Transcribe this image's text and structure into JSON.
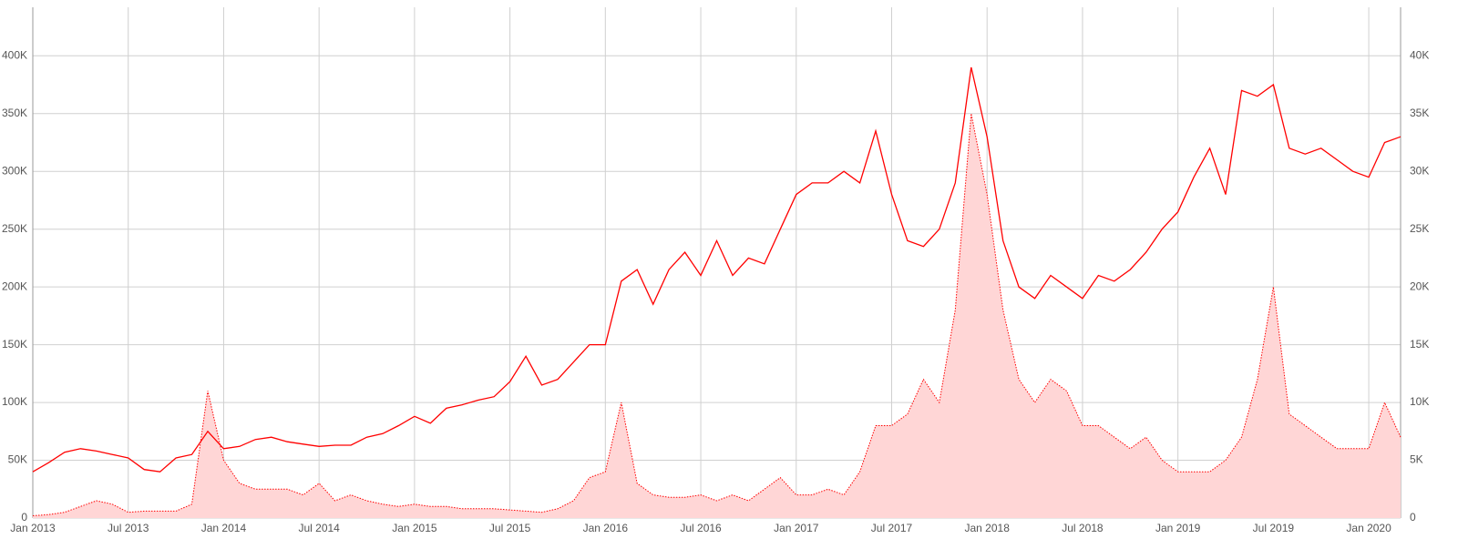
{
  "chart_data": {
    "type": "line",
    "x": [
      "2013-01",
      "2013-02",
      "2013-03",
      "2013-04",
      "2013-05",
      "2013-06",
      "2013-07",
      "2013-08",
      "2013-09",
      "2013-10",
      "2013-11",
      "2013-12",
      "2014-01",
      "2014-02",
      "2014-03",
      "2014-04",
      "2014-05",
      "2014-06",
      "2014-07",
      "2014-08",
      "2014-09",
      "2014-10",
      "2014-11",
      "2014-12",
      "2015-01",
      "2015-02",
      "2015-03",
      "2015-04",
      "2015-05",
      "2015-06",
      "2015-07",
      "2015-08",
      "2015-09",
      "2015-10",
      "2015-11",
      "2015-12",
      "2016-01",
      "2016-02",
      "2016-03",
      "2016-04",
      "2016-05",
      "2016-06",
      "2016-07",
      "2016-08",
      "2016-09",
      "2016-10",
      "2016-11",
      "2016-12",
      "2017-01",
      "2017-02",
      "2017-03",
      "2017-04",
      "2017-05",
      "2017-06",
      "2017-07",
      "2017-08",
      "2017-09",
      "2017-10",
      "2017-11",
      "2017-12",
      "2018-01",
      "2018-02",
      "2018-03",
      "2018-04",
      "2018-05",
      "2018-06",
      "2018-07",
      "2018-08",
      "2018-09",
      "2018-10",
      "2018-11",
      "2018-12",
      "2019-01",
      "2019-02",
      "2019-03",
      "2019-04",
      "2019-05",
      "2019-06",
      "2019-07",
      "2019-08",
      "2019-09",
      "2019-10",
      "2019-11",
      "2019-12",
      "2020-01",
      "2020-02",
      "2020-03"
    ],
    "series": [
      {
        "type": "line",
        "color": "#ff0000",
        "values": [
          40000,
          48000,
          57000,
          60000,
          58000,
          55000,
          52000,
          42000,
          40000,
          52000,
          55000,
          75000,
          60000,
          62000,
          68000,
          70000,
          66000,
          64000,
          62000,
          63000,
          63000,
          70000,
          73000,
          80000,
          88000,
          82000,
          95000,
          98000,
          102000,
          105000,
          118000,
          140000,
          115000,
          120000,
          135000,
          150000,
          150000,
          205000,
          215000,
          185000,
          215000,
          230000,
          210000,
          240000,
          210000,
          225000,
          220000,
          250000,
          280000,
          290000,
          290000,
          300000,
          290000,
          335000,
          280000,
          240000,
          235000,
          250000,
          290000,
          390000,
          330000,
          240000,
          200000,
          190000,
          210000,
          200000,
          190000,
          210000,
          205000,
          215000,
          230000,
          250000,
          265000,
          295000,
          320000,
          280000,
          370000,
          365000,
          375000,
          320000,
          315000,
          320000,
          310000,
          300000,
          295000,
          325000,
          330000
        ]
      },
      {
        "type": "area",
        "axis": "y2",
        "color": "#ff0000",
        "fill": "#ffd6d6",
        "values": [
          200,
          300,
          500,
          1000,
          1500,
          1200,
          500,
          600,
          600,
          600,
          1200,
          11000,
          5000,
          3000,
          2500,
          2500,
          2500,
          2000,
          3000,
          1500,
          2000,
          1500,
          1200,
          1000,
          1200,
          1000,
          1000,
          800,
          800,
          800,
          700,
          600,
          500,
          800,
          1500,
          3500,
          4000,
          10000,
          3000,
          2000,
          1800,
          1800,
          2000,
          1500,
          2000,
          1500,
          2500,
          3500,
          2000,
          2000,
          2500,
          2000,
          4000,
          8000,
          8000,
          9000,
          12000,
          10000,
          18000,
          35000,
          28000,
          18000,
          12000,
          10000,
          12000,
          11000,
          8000,
          8000,
          7000,
          6000,
          7000,
          5000,
          4000,
          4000,
          4000,
          5000,
          7000,
          12000,
          20000,
          9000,
          8000,
          7000,
          6000,
          6000,
          6000,
          10000,
          7000
        ]
      }
    ],
    "xlim": [
      "2013-01",
      "2020-03"
    ],
    "xticks": [
      {
        "value": "2013-01",
        "label": "Jan 2013"
      },
      {
        "value": "2013-07",
        "label": "Jul 2013"
      },
      {
        "value": "2014-01",
        "label": "Jan 2014"
      },
      {
        "value": "2014-07",
        "label": "Jul 2014"
      },
      {
        "value": "2015-01",
        "label": "Jan 2015"
      },
      {
        "value": "2015-07",
        "label": "Jul 2015"
      },
      {
        "value": "2016-01",
        "label": "Jan 2016"
      },
      {
        "value": "2016-07",
        "label": "Jul 2016"
      },
      {
        "value": "2017-01",
        "label": "Jan 2017"
      },
      {
        "value": "2017-07",
        "label": "Jul 2017"
      },
      {
        "value": "2018-01",
        "label": "Jan 2018"
      },
      {
        "value": "2018-07",
        "label": "Jul 2018"
      },
      {
        "value": "2019-01",
        "label": "Jan 2019"
      },
      {
        "value": "2019-07",
        "label": "Jul 2019"
      },
      {
        "value": "2020-01",
        "label": "Jan 2020"
      }
    ],
    "ylim": [
      0,
      442000
    ],
    "yticks": [
      0,
      {
        "value": 50000,
        "label": "50K"
      },
      {
        "value": 100000,
        "label": "100K"
      },
      {
        "value": 150000,
        "label": "150K"
      },
      {
        "value": 200000,
        "label": "200K"
      },
      {
        "value": 250000,
        "label": "250K"
      },
      {
        "value": 300000,
        "label": "300K"
      },
      {
        "value": 350000,
        "label": "350K"
      },
      {
        "value": 400000,
        "label": "400K"
      }
    ],
    "y2lim": [
      0,
      44200
    ],
    "y2ticks": [
      0,
      {
        "value": 5000,
        "label": "5K"
      },
      {
        "value": 10000,
        "label": "10K"
      },
      {
        "value": 15000,
        "label": "15K"
      },
      {
        "value": 20000,
        "label": "20K"
      },
      {
        "value": 25000,
        "label": "25K"
      },
      {
        "value": 30000,
        "label": "30K"
      },
      {
        "value": 35000,
        "label": "35K"
      },
      {
        "value": 40000,
        "label": "40K"
      }
    ],
    "grid": true
  }
}
